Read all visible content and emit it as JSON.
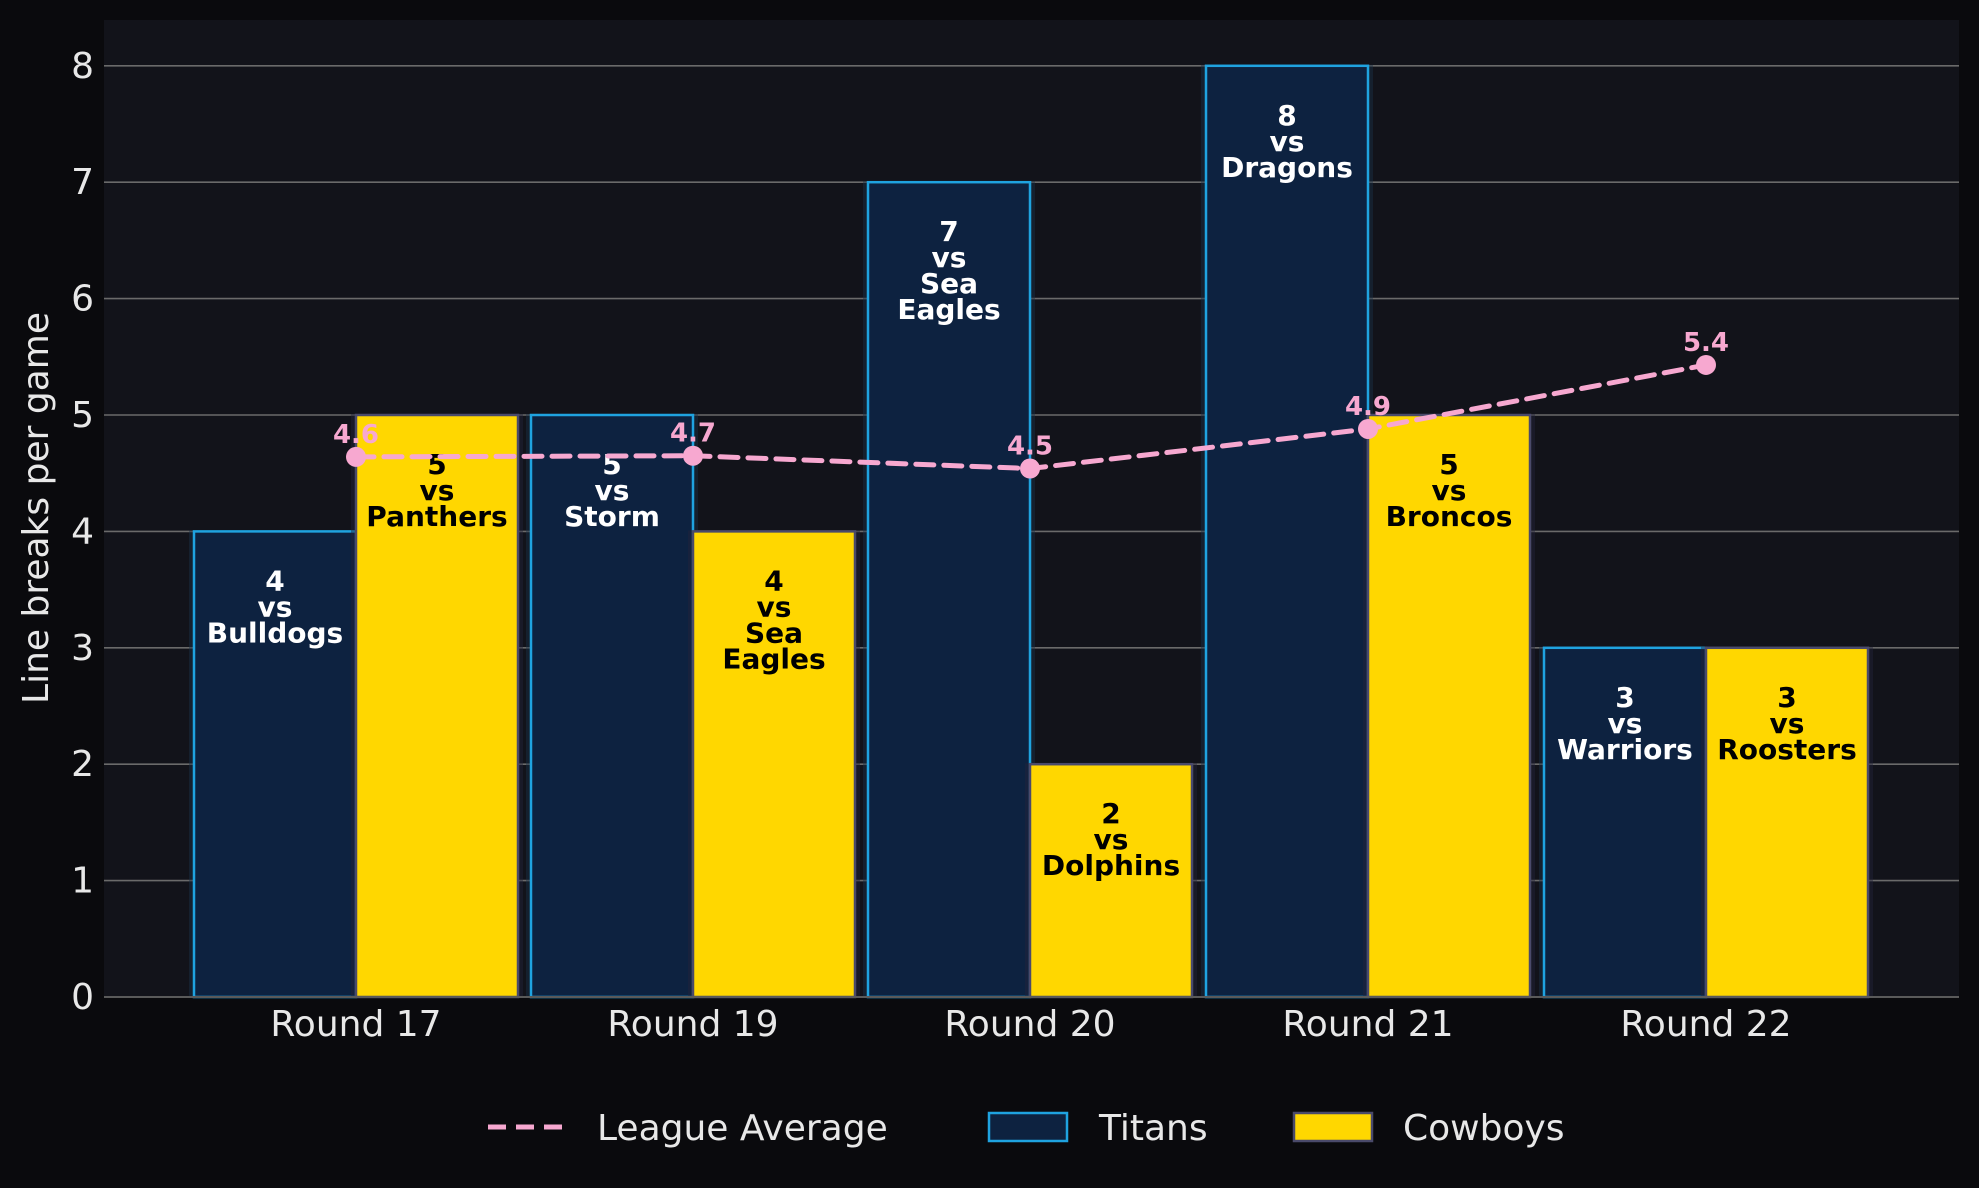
{
  "chart_data": {
    "type": "bar",
    "title": "",
    "xlabel": "",
    "ylabel": "Line breaks per game",
    "ylim": [
      0,
      8.4
    ],
    "yticks": [
      "0",
      "1",
      "2",
      "3",
      "4",
      "5",
      "6",
      "7",
      "8"
    ],
    "grid": true,
    "legend_position": "bottom-center",
    "categories": [
      "Round 17",
      "Round 19",
      "Round 20",
      "Round 21",
      "Round 22"
    ],
    "series": [
      {
        "name": "Titans",
        "kind": "bar",
        "color": "#0d2240",
        "edge_color": "#1fa3e0",
        "text_color": "#ffffff",
        "values": [
          4,
          5,
          7,
          8,
          3
        ],
        "labels": [
          [
            "4",
            "vs",
            "Bulldogs"
          ],
          [
            "5",
            "vs",
            "Storm"
          ],
          [
            "7",
            "vs",
            "Sea",
            "Eagles"
          ],
          [
            "8",
            "vs",
            "Dragons"
          ],
          [
            "3",
            "vs",
            "Warriors"
          ]
        ]
      },
      {
        "name": "Cowboys",
        "kind": "bar",
        "color": "#ffd700",
        "edge_color": "#4a4a6a",
        "text_color": "#000000",
        "values": [
          5,
          4,
          2,
          5,
          3
        ],
        "labels": [
          [
            "5",
            "vs",
            "Panthers"
          ],
          [
            "4",
            "vs",
            "Sea",
            "Eagles"
          ],
          [
            "2",
            "vs",
            "Dolphins"
          ],
          [
            "5",
            "vs",
            "Broncos"
          ],
          [
            "3",
            "vs",
            "Roosters"
          ]
        ]
      },
      {
        "name": "League Average",
        "kind": "line",
        "style": "dashed",
        "color": "#f7a8d0",
        "values": [
          4.64,
          4.65,
          4.54,
          4.88,
          5.43
        ],
        "labels": [
          "4.6",
          "4.7",
          "4.5",
          "4.9",
          "5.4"
        ]
      }
    ]
  },
  "colors": {
    "page_background": "#0a0a0d",
    "plot_background": "#12131a",
    "grid": "#6a6a6a",
    "axis_text": "#e8e8e8"
  }
}
